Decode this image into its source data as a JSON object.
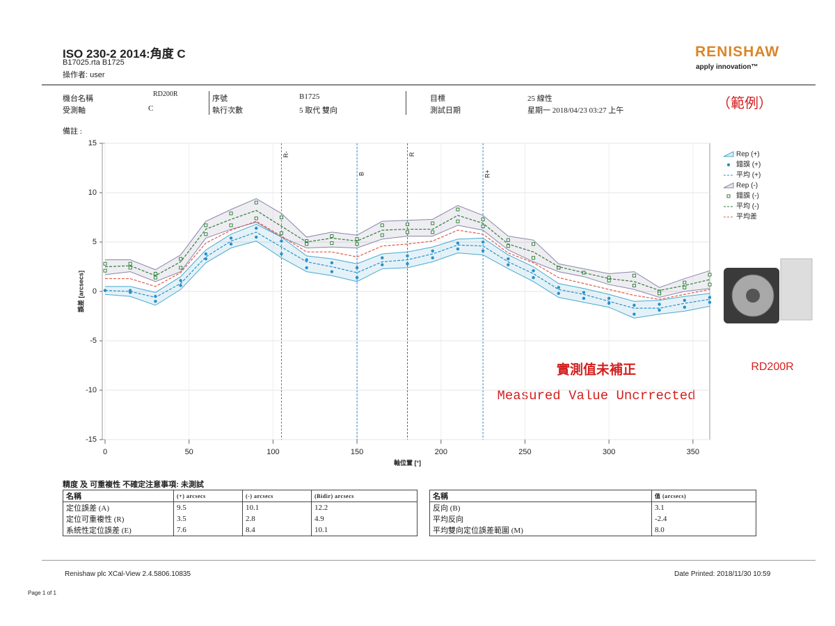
{
  "header": {
    "title": "ISO 230-2 2014:角度 C",
    "file": "B17025.rta B1725",
    "operator": "操作者: user",
    "logo": "RENISHAW",
    "tagline": "apply innovation™"
  },
  "info": {
    "rows": [
      [
        "機台名稱",
        "RD200R",
        "序號",
        "B1725",
        "目標",
        "25 線性"
      ],
      [
        "受測軸",
        "C",
        "執行次數",
        "5 取代 雙向",
        "測試日期",
        "星期一 2018/04/23 03:27 上午"
      ]
    ],
    "example": "（範例）",
    "remarks": "備註 :"
  },
  "chart_data": {
    "type": "line",
    "x": [
      0,
      15,
      30,
      45,
      60,
      75,
      90,
      105,
      120,
      135,
      150,
      165,
      180,
      195,
      210,
      225,
      240,
      255,
      270,
      285,
      300,
      315,
      330,
      345,
      360
    ],
    "xlim": [
      0,
      360
    ],
    "xticks": [
      0,
      50,
      100,
      150,
      200,
      250,
      300,
      350
    ],
    "ylim": [
      -15,
      15
    ],
    "yticks": [
      -15,
      -10,
      -5,
      0,
      5,
      10,
      15
    ],
    "x_label": "軸位置 [°]",
    "y_label": "誤差 [arcsecs]",
    "grid": true,
    "markers": [
      {
        "label": "R-",
        "value": 105,
        "color": "#d9534f"
      },
      {
        "label": "B",
        "value": 150,
        "color": "#3a87c8"
      },
      {
        "label": "R",
        "value": 180,
        "color": "#2e8b3a"
      },
      {
        "label": "R+",
        "value": 225,
        "color": "#3a87c8"
      }
    ],
    "series": [
      {
        "name": "Rep (+)",
        "kind": "band",
        "color": "#49a8d0",
        "values": [
          0.5,
          0.5,
          -0.1,
          1.5,
          4.2,
          5.8,
          6.8,
          5.5,
          3.6,
          3.3,
          2.8,
          3.8,
          4.0,
          4.5,
          5.3,
          5.4,
          3.7,
          2.5,
          0.8,
          0.3,
          -0.3,
          -1.0,
          -0.9,
          -0.5,
          -0.2
        ],
        "lower": [
          -0.3,
          -0.5,
          -1.4,
          0.2,
          2.9,
          4.4,
          5.1,
          3.4,
          2.0,
          1.6,
          1.0,
          2.3,
          2.4,
          3.0,
          3.9,
          3.7,
          2.3,
          1.0,
          -0.6,
          -1.1,
          -1.6,
          -2.7,
          -2.3,
          -2.0,
          -1.5
        ]
      },
      {
        "name": "錯誤 (+)",
        "kind": "points",
        "marker": "circle",
        "color": "#2a8fc8",
        "values": [
          [
            0.1,
            0.1
          ],
          [
            0.1,
            -0.1
          ],
          [
            -0.5,
            -1.0
          ],
          [
            1.1,
            0.6
          ],
          [
            3.8,
            3.3
          ],
          [
            5.4,
            4.8
          ],
          [
            6.4,
            5.5
          ],
          [
            5.1,
            3.8
          ],
          [
            3.2,
            2.4
          ],
          [
            2.9,
            2.0
          ],
          [
            2.4,
            1.4
          ],
          [
            3.4,
            2.7
          ],
          [
            3.6,
            2.8
          ],
          [
            4.1,
            3.4
          ],
          [
            4.9,
            4.3
          ],
          [
            5.0,
            4.1
          ],
          [
            3.3,
            2.7
          ],
          [
            2.1,
            1.4
          ],
          [
            0.4,
            -0.2
          ],
          [
            -0.1,
            -0.7
          ],
          [
            -0.7,
            -1.2
          ],
          [
            -1.4,
            -2.3
          ],
          [
            -1.3,
            -1.9
          ],
          [
            -0.9,
            -1.6
          ],
          [
            -0.6,
            -1.1
          ]
        ]
      },
      {
        "name": "平均 (+)",
        "kind": "line",
        "color": "#2a8fc8",
        "values": [
          0.1,
          0.0,
          -0.6,
          0.8,
          3.5,
          5.1,
          6.0,
          4.5,
          3.0,
          2.5,
          1.9,
          3.0,
          3.2,
          3.8,
          4.7,
          4.6,
          3.0,
          1.8,
          0.2,
          -0.3,
          -1.0,
          -1.7,
          -1.7,
          -1.2,
          -0.8
        ]
      },
      {
        "name": "Rep (-)",
        "kind": "band",
        "color": "#8a86a8",
        "values": [
          3.2,
          3.2,
          2.2,
          3.7,
          7.1,
          8.3,
          9.4,
          7.9,
          5.5,
          6.0,
          5.7,
          7.1,
          7.2,
          7.3,
          8.7,
          7.7,
          5.6,
          5.2,
          2.8,
          2.3,
          1.8,
          2.0,
          0.4,
          1.3,
          2.1
        ],
        "lower": [
          1.7,
          2.0,
          1.0,
          2.0,
          5.4,
          6.3,
          7.0,
          5.5,
          4.4,
          4.5,
          4.4,
          5.3,
          5.6,
          5.6,
          6.7,
          6.2,
          4.2,
          3.0,
          2.0,
          1.5,
          0.7,
          0.2,
          -0.6,
          0.0,
          0.3
        ]
      },
      {
        "name": "錯誤 (-)",
        "kind": "points",
        "marker": "square",
        "color": "#2e7d3a",
        "values": [
          [
            2.8,
            2.1
          ],
          [
            2.8,
            2.4
          ],
          [
            1.8,
            1.4
          ],
          [
            3.3,
            2.4
          ],
          [
            6.7,
            5.8
          ],
          [
            7.9,
            6.7
          ],
          [
            9.0,
            7.4
          ],
          [
            7.5,
            5.9
          ],
          [
            5.1,
            4.8
          ],
          [
            5.6,
            4.9
          ],
          [
            5.3,
            4.8
          ],
          [
            6.7,
            5.7
          ],
          [
            6.8,
            6.0
          ],
          [
            6.9,
            6.0
          ],
          [
            8.3,
            7.1
          ],
          [
            7.3,
            6.6
          ],
          [
            5.2,
            4.6
          ],
          [
            4.8,
            3.4
          ],
          [
            2.4,
            2.4
          ],
          [
            1.9,
            1.9
          ],
          [
            1.4,
            1.1
          ],
          [
            1.6,
            0.6
          ],
          [
            0.0,
            -0.2
          ],
          [
            0.9,
            0.4
          ],
          [
            1.7,
            0.7
          ]
        ]
      },
      {
        "name": "平均 (-)",
        "kind": "line",
        "color": "#2e7d3a",
        "values": [
          2.5,
          2.6,
          1.6,
          3.0,
          6.3,
          7.3,
          8.2,
          6.6,
          5.0,
          5.4,
          5.1,
          6.2,
          6.3,
          6.3,
          7.7,
          6.9,
          4.8,
          4.0,
          2.5,
          1.9,
          1.3,
          1.0,
          0.1,
          0.6,
          1.2
        ]
      },
      {
        "name": "平均差",
        "kind": "line",
        "color": "#e05a4a",
        "values": [
          1.3,
          1.3,
          0.5,
          1.9,
          4.9,
          6.2,
          7.1,
          5.6,
          4.0,
          4.0,
          3.5,
          4.6,
          4.8,
          5.1,
          6.2,
          5.8,
          3.9,
          2.9,
          1.4,
          0.8,
          0.2,
          -0.4,
          -0.8,
          -0.3,
          0.2
        ]
      }
    ],
    "annotations": [
      "實測值未補正",
      "Measured Value Uncrrected"
    ],
    "product_label": "RD200R"
  },
  "tables": {
    "caption": "精度 及 可重複性 不確定注意事項: 未測試",
    "left": {
      "header": [
        "名稱",
        "(+) arcsecs",
        "(-) arcsecs",
        "(Bidir) arcsecs"
      ],
      "rows": [
        [
          "定位誤差 (A)",
          "9.5",
          "10.1",
          "12.2"
        ],
        [
          "定位可重複性 (R)",
          "3.5",
          "2.8",
          "4.9"
        ],
        [
          "系統性定位誤差 (E)",
          "7.6",
          "8.4",
          "10.1"
        ]
      ]
    },
    "right": {
      "header": [
        "名稱",
        "值 (arcsecs)"
      ],
      "rows": [
        [
          "反向 (B)",
          "3.1"
        ],
        [
          "平均反向",
          "-2.4"
        ],
        [
          "平均雙向定位誤差範圍 (M)",
          "8.0"
        ]
      ]
    }
  },
  "footer": {
    "software": "Renishaw plc XCal-View 2.4.5806.10835",
    "printed": "Date Printed: 2018/11/30 10:59",
    "page": "Page 1 of 1"
  }
}
